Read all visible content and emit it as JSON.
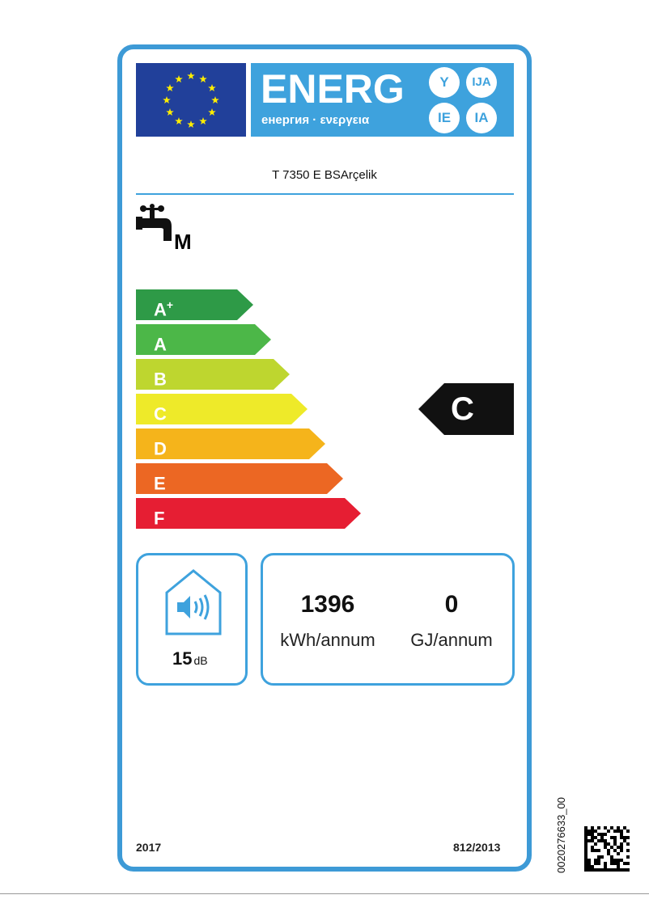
{
  "header": {
    "energy_title": "ENERG",
    "energy_subtitle": "енергия · ενεργεια",
    "language_suffixes": [
      "Y",
      "IJA",
      "IE",
      "IA"
    ]
  },
  "product": {
    "model": "T 7350 E BSArçelik",
    "load_profile": "M"
  },
  "scale": {
    "classes": [
      {
        "label": "A",
        "sup": "+",
        "color": "#2e9a47"
      },
      {
        "label": "A",
        "sup": "",
        "color": "#4cb748"
      },
      {
        "label": "B",
        "sup": "",
        "color": "#bed62f"
      },
      {
        "label": "C",
        "sup": "",
        "color": "#eeea29"
      },
      {
        "label": "D",
        "sup": "",
        "color": "#f5b41b"
      },
      {
        "label": "E",
        "sup": "",
        "color": "#ec6723"
      },
      {
        "label": "F",
        "sup": "",
        "color": "#e61e33"
      }
    ],
    "rating": "C"
  },
  "noise": {
    "value": "15",
    "unit": "dB"
  },
  "consumption": {
    "electricity_value": "1396",
    "electricity_unit": "kWh/annum",
    "fuel_value": "0",
    "fuel_unit": "GJ/annum"
  },
  "footer": {
    "year": "2017",
    "regulation": "812/2013"
  },
  "side_code": "0020276633_00",
  "colors": {
    "frame": "#3d9ad6",
    "eu_blue": "#21409a"
  }
}
